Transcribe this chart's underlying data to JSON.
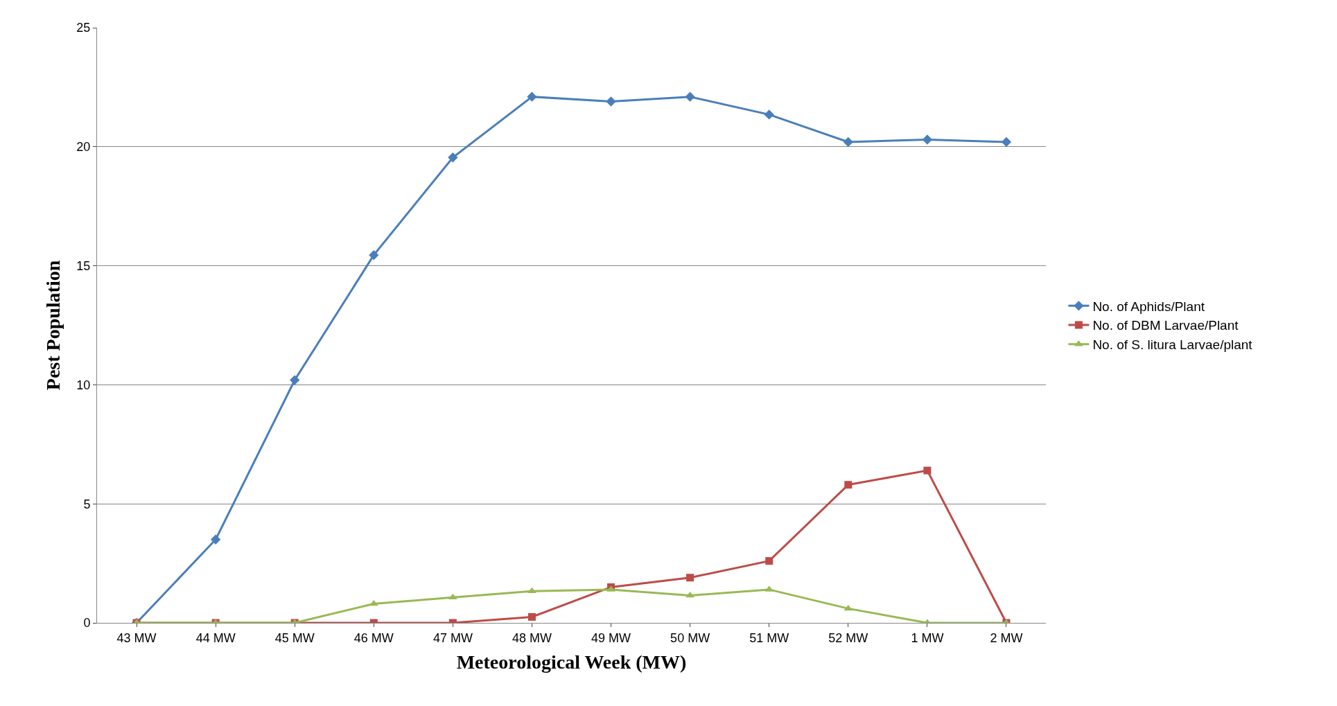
{
  "chart_data": {
    "type": "line",
    "xlabel": "Meteorological Week (MW)",
    "ylabel": "Pest Population",
    "categories": [
      "43 MW",
      "44 MW",
      "45 MW",
      "46 MW",
      "47 MW",
      "48 MW",
      "49 MW",
      "50 MW",
      "51 MW",
      "52 MW",
      "1 MW",
      "2 MW"
    ],
    "series": [
      {
        "name": "No. of Aphids/Plant",
        "color": "#4a7ebb",
        "marker": "diamond",
        "values": [
          0,
          3.5,
          10.2,
          15.45,
          19.55,
          22.1,
          21.9,
          22.1,
          21.35,
          20.2,
          20.3,
          20.2
        ]
      },
      {
        "name": "No. of DBM Larvae/Plant",
        "color": "#be4b48",
        "marker": "square",
        "values": [
          0,
          0,
          0,
          0,
          0,
          0.25,
          1.5,
          1.9,
          2.6,
          5.8,
          6.4,
          0
        ]
      },
      {
        "name": "No. of S. litura Larvae/plant",
        "color": "#98b954",
        "marker": "triangle",
        "values": [
          0,
          0,
          0,
          0.8,
          1.07,
          1.33,
          1.4,
          1.15,
          1.4,
          0.6,
          0,
          0
        ]
      }
    ],
    "ylim": [
      0,
      25
    ],
    "yticks": [
      0,
      5,
      10,
      15,
      20,
      25
    ],
    "grid": "y",
    "legend": "right",
    "line_style": "solid"
  }
}
